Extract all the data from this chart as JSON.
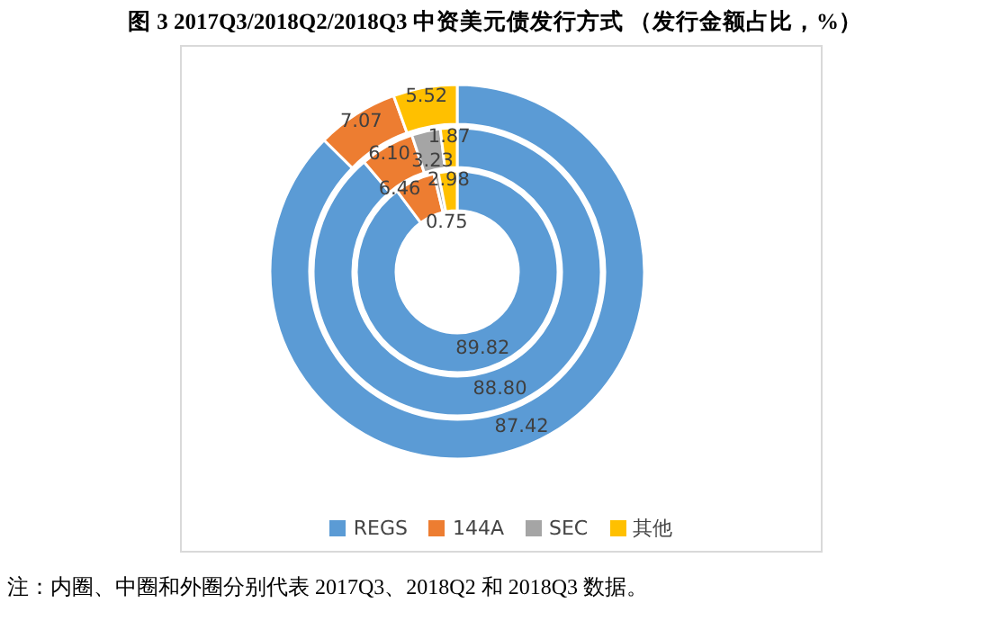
{
  "chart_data": {
    "type": "donut",
    "title": "图 3 2017Q3/2018Q2/2018Q3 中资美元债发行方式 （发行金额占比，%）",
    "categories": [
      "REGS",
      "144A",
      "SEC",
      "其他"
    ],
    "colors": [
      "#5b9bd5",
      "#ed7d31",
      "#a5a5a5",
      "#ffc000"
    ],
    "series": [
      {
        "values": [
          89.82,
          6.46,
          0.75,
          2.98
        ],
        "value_labels": [
          "89.82",
          "6.46",
          "0.75",
          "2.98"
        ]
      },
      {
        "values": [
          88.8,
          6.1,
          3.23,
          1.87
        ],
        "value_labels": [
          "88.80",
          "6.10",
          "3.23",
          "1.87"
        ]
      },
      {
        "values": [
          87.42,
          7.07,
          0,
          5.52
        ],
        "value_labels": [
          "87.42",
          "7.07",
          null,
          "5.52"
        ]
      }
    ],
    "legend": "bottom",
    "annotations": [
      "注：内圈、中圈和外圈分别代表 2017Q3、2018Q2 和 2018Q3 数据。"
    ]
  }
}
